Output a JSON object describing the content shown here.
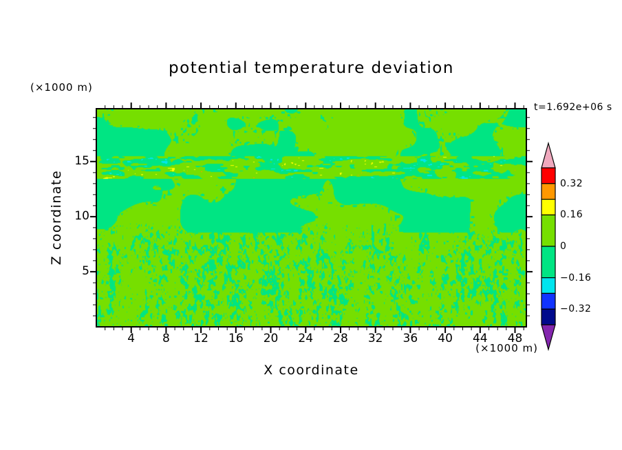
{
  "chart_data": {
    "type": "heatmap",
    "subtype": "filled-contour",
    "title": "potential temperature deviation",
    "xlabel": "X coordinate",
    "ylabel": "Z coordinate",
    "x_unit": "(×1000 m)",
    "y_unit": "(×1000 m)",
    "time_annotation": "t=1.692e+06 s",
    "x_range": [
      0,
      49.3
    ],
    "y_range": [
      0,
      19.8
    ],
    "x_ticks": [
      4,
      8,
      12,
      16,
      20,
      24,
      28,
      32,
      36,
      40,
      44,
      48
    ],
    "y_ticks": [
      5,
      10,
      15
    ],
    "x_minor_step": 1,
    "y_minor_step": 1,
    "field": {
      "description": "Filled-contour field dominated by small deviations: yellow-green where 0..0.16, spring-green where -0.16..0. Smooth large blobs above z=9, a thin streaky layer near z=14-15 with isolated cyan (negative) and yellow/orange (positive) anomalies, and fine speckle texture below z=8.",
      "value_colors": {
        "positive": "#76DF00",
        "negative": "#00E583",
        "cyan": "#00E5EE",
        "yellow": "#FFFF00",
        "orange": "#FF9800"
      }
    },
    "colorbar": {
      "segments": [
        {
          "color": "#FF0000",
          "from": 0.32,
          "to": 0.4,
          "units": 1
        },
        {
          "color": "#FF9800",
          "from": 0.24,
          "to": 0.32,
          "units": 1
        },
        {
          "color": "#FFFF00",
          "from": 0.16,
          "to": 0.24,
          "units": 1
        },
        {
          "color": "#76DF00",
          "from": 0,
          "to": 0.16,
          "units": 2
        },
        {
          "color": "#00E583",
          "from": -0.16,
          "to": 0,
          "units": 2
        },
        {
          "color": "#00E5EE",
          "from": -0.24,
          "to": -0.16,
          "units": 1
        },
        {
          "color": "#1133FF",
          "from": -0.32,
          "to": -0.24,
          "units": 1
        },
        {
          "color": "#000A8C",
          "from": -0.4,
          "to": -0.32,
          "units": 1
        }
      ],
      "top_arrow_color": "#F0A9BE",
      "bottom_arrow_color": "#8326AE",
      "labels": [
        {
          "text": "0.32",
          "unit_pos": 1
        },
        {
          "text": "0.16",
          "unit_pos": 3
        },
        {
          "text": "0",
          "unit_pos": 5
        },
        {
          "text": "−0.16",
          "unit_pos": 7
        },
        {
          "text": "−0.32",
          "unit_pos": 9
        }
      ]
    }
  }
}
